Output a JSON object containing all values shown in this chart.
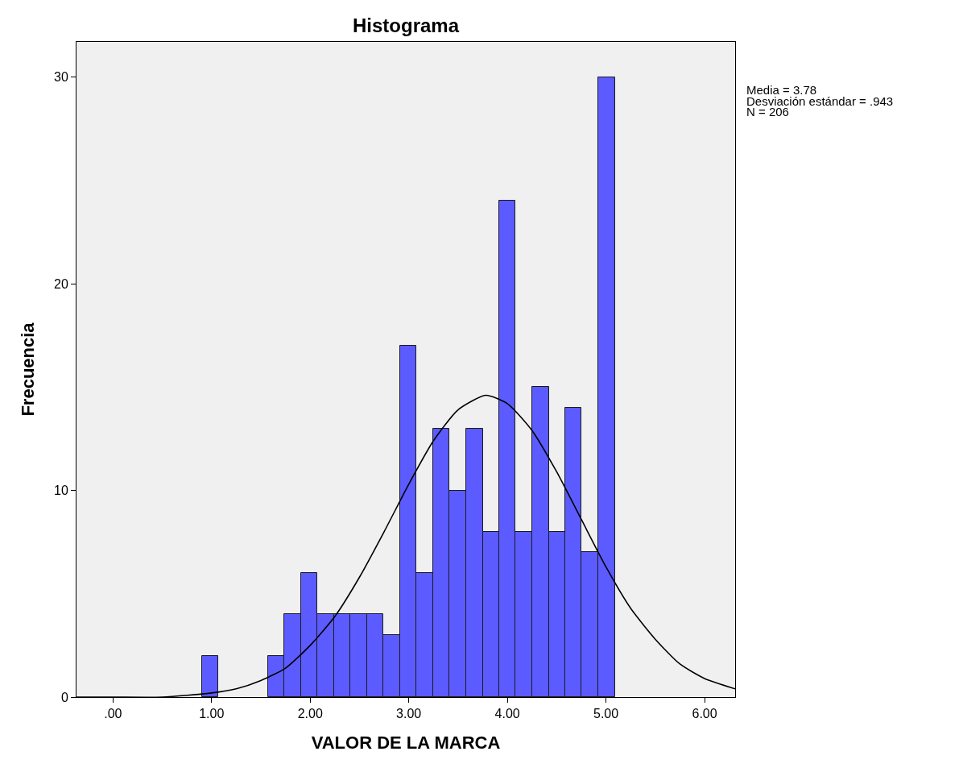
{
  "chart_data": {
    "type": "histogram",
    "title": "Histograma",
    "xlabel": "VALOR DE LA MARCA",
    "ylabel": "Frecuencia",
    "bins": [
      0.9,
      1.07,
      1.57,
      1.74,
      1.91,
      2.07,
      2.24,
      2.41,
      2.58,
      2.74,
      2.91,
      3.08,
      3.25,
      3.41,
      3.58,
      3.75,
      3.92,
      4.08,
      4.25,
      4.42,
      4.59,
      4.75,
      4.92,
      5.09
    ],
    "values": [
      2,
      0,
      2,
      4,
      6,
      4,
      4,
      4,
      4,
      3,
      17,
      6,
      13,
      10,
      13,
      8,
      24,
      8,
      15,
      8,
      14,
      7,
      30
    ],
    "color": "#5b5bff",
    "series": [
      {
        "type": "line",
        "color": "#000000",
        "x": [
          -0.37,
          0.0,
          0.5,
          1.0,
          1.25,
          1.5,
          1.75,
          2.0,
          2.25,
          2.5,
          2.75,
          3.0,
          3.25,
          3.5,
          3.78,
          4.0,
          4.25,
          4.5,
          4.75,
          5.0,
          5.25,
          5.5,
          5.75,
          6.0,
          6.31
        ],
        "values": [
          0.0,
          0.0,
          0.0,
          0.2,
          0.4,
          0.8,
          1.4,
          2.5,
          3.9,
          5.8,
          8.0,
          10.3,
          12.4,
          13.9,
          14.6,
          14.2,
          12.9,
          10.9,
          8.6,
          6.3,
          4.3,
          2.8,
          1.6,
          0.9,
          0.4
        ]
      }
    ],
    "xlim": [
      -0.37,
      6.31
    ],
    "xticks": [
      {
        "value": 0,
        "label": ".00"
      },
      {
        "value": 1,
        "label": "1.00"
      },
      {
        "value": 2,
        "label": "2.00"
      },
      {
        "value": 3,
        "label": "3.00"
      },
      {
        "value": 4,
        "label": "4.00"
      },
      {
        "value": 5,
        "label": "5.00"
      },
      {
        "value": 6,
        "label": "6.00"
      }
    ],
    "ylim": [
      0,
      31.7
    ],
    "yticks": [
      0,
      10,
      20,
      30
    ],
    "annotations": [
      "Media = 3.78",
      "Desviación estándar = .943",
      "N = 206"
    ],
    "marker": "none",
    "line_style": "solid"
  }
}
